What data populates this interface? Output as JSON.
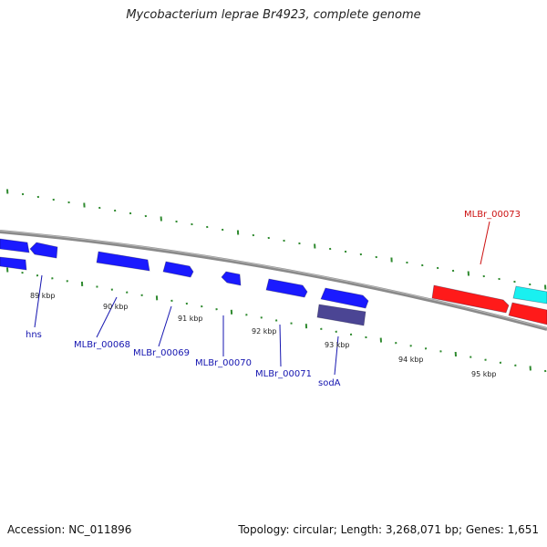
{
  "title": "Mycobacterium leprae Br4923, complete genome",
  "accession": "Accession: NC_011896",
  "summary": "Topology: circular; Length: 3,268,071 bp; Genes: 1,651",
  "colors": {
    "backbone": "#8a8a8a",
    "ticks": "#2f8a2f",
    "gene_blue": "#1a1aff",
    "gene_slate": "#4b4594",
    "gene_red": "#ff1a1a",
    "gene_cyan": "#19f0f0",
    "label_blue": "#1515b0",
    "label_red": "#cc1111"
  },
  "scale_labels": [
    "89 kbp",
    "90 kbp",
    "91 kbp",
    "92 kbp",
    "93 kbp",
    "94 kbp",
    "95 kbp"
  ],
  "gene_labels": [
    {
      "text": "hns",
      "color": "label_blue"
    },
    {
      "text": "MLBr_00068",
      "color": "label_blue"
    },
    {
      "text": "MLBr_00069",
      "color": "label_blue"
    },
    {
      "text": "MLBr_00070",
      "color": "label_blue"
    },
    {
      "text": "MLBr_00071",
      "color": "label_blue"
    },
    {
      "text": "sodA",
      "color": "label_blue"
    },
    {
      "text": "MLBr_00073",
      "color": "label_red"
    }
  ]
}
